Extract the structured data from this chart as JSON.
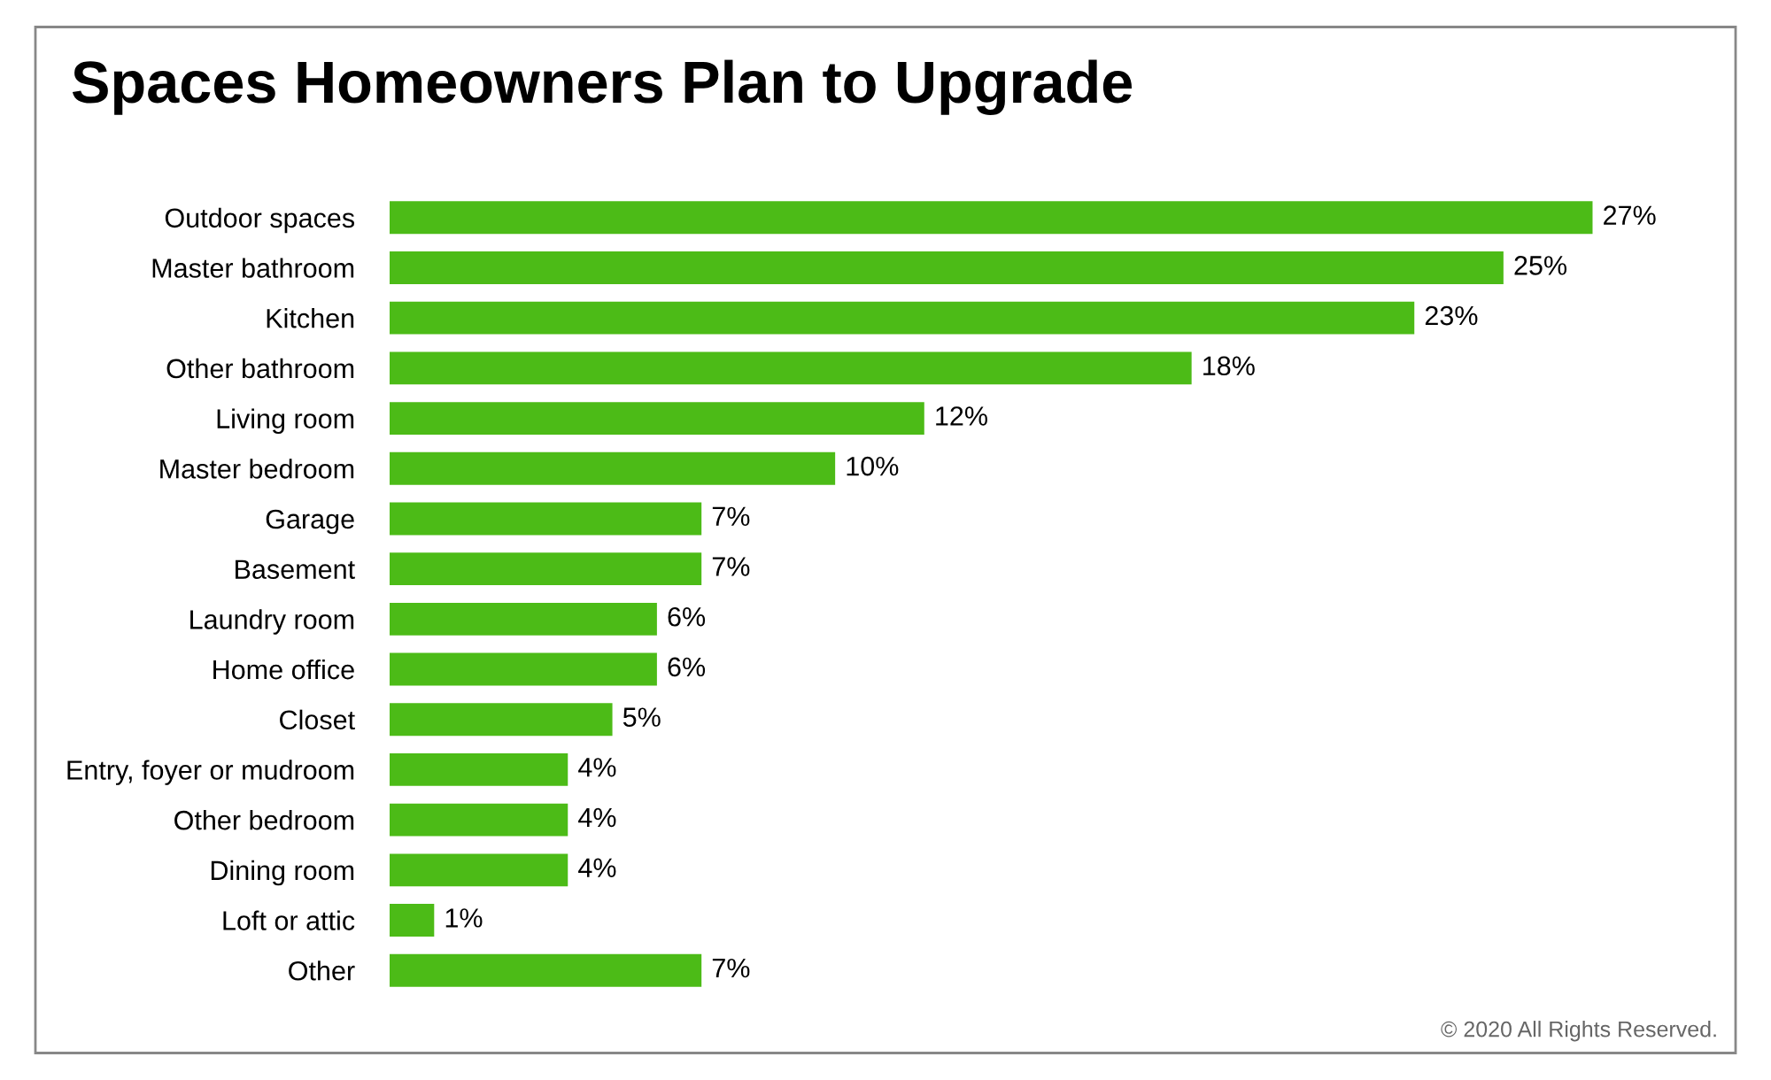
{
  "chart_data": {
    "type": "bar",
    "orientation": "horizontal",
    "title": "Spaces Homeowners Plan to Upgrade",
    "categories": [
      "Outdoor spaces",
      "Master bathroom",
      "Kitchen",
      "Other bathroom",
      "Living room",
      "Master bedroom",
      "Garage",
      "Basement",
      "Laundry room",
      "Home office",
      "Closet",
      "Entry, foyer or mudroom",
      "Other bedroom",
      "Dining room",
      "Loft or attic",
      "Other"
    ],
    "values": [
      27,
      25,
      23,
      18,
      12,
      10,
      7,
      7,
      6,
      6,
      5,
      4,
      4,
      4,
      1,
      7
    ],
    "value_labels": [
      "27%",
      "25%",
      "23%",
      "18%",
      "12%",
      "10%",
      "7%",
      "7%",
      "6%",
      "6%",
      "5%",
      "4%",
      "4%",
      "4%",
      "1%",
      "7%"
    ],
    "color": "#4cbb17",
    "annotations": [
      "© 2020 All Rights Reserved."
    ]
  }
}
